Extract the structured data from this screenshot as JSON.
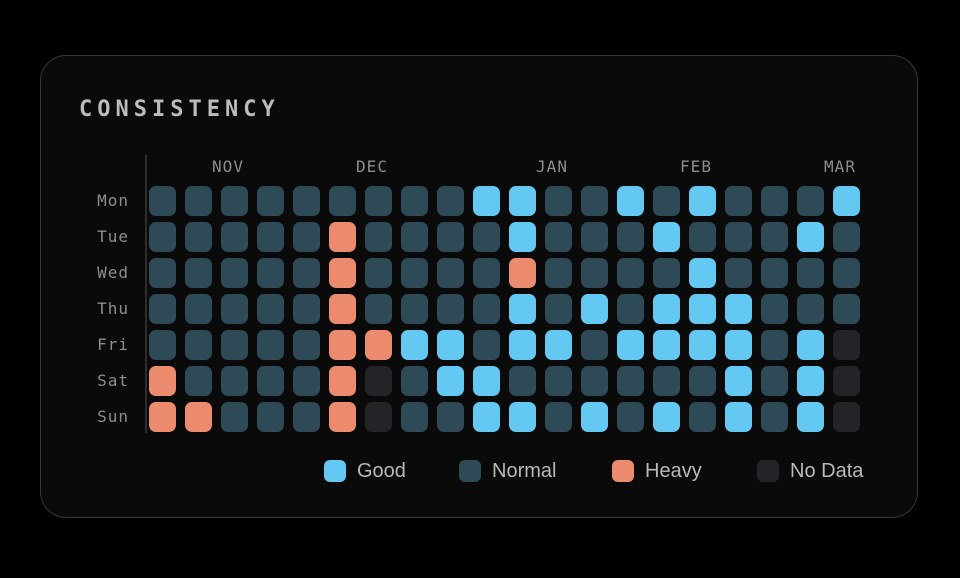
{
  "card": {
    "title": "CONSISTENCY"
  },
  "chart_data": {
    "type": "heatmap",
    "title": "CONSISTENCY",
    "weeks": 20,
    "day_labels": [
      "Mon",
      "Tue",
      "Wed",
      "Thu",
      "Fri",
      "Sat",
      "Sun"
    ],
    "month_labels": [
      {
        "label": "NOV",
        "week_index": 2
      },
      {
        "label": "DEC",
        "week_index": 6
      },
      {
        "label": "JAN",
        "week_index": 11
      },
      {
        "label": "FEB",
        "week_index": 15
      },
      {
        "label": "MAR",
        "week_index": 19
      }
    ],
    "categories": {
      "G": "Good",
      "N": "Normal",
      "H": "Heavy",
      "X": "No Data"
    },
    "colors": {
      "G": "#63c9f2",
      "N": "#2e4a57",
      "H": "#ed8b6e",
      "X": "#232427"
    },
    "rows": [
      {
        "day": "Mon",
        "cells": [
          "N",
          "N",
          "N",
          "N",
          "N",
          "N",
          "N",
          "N",
          "N",
          "G",
          "G",
          "N",
          "N",
          "G",
          "N",
          "G",
          "N",
          "N",
          "N",
          "G"
        ]
      },
      {
        "day": "Tue",
        "cells": [
          "N",
          "N",
          "N",
          "N",
          "N",
          "H",
          "N",
          "N",
          "N",
          "N",
          "G",
          "N",
          "N",
          "N",
          "G",
          "N",
          "N",
          "N",
          "G",
          "N"
        ]
      },
      {
        "day": "Wed",
        "cells": [
          "N",
          "N",
          "N",
          "N",
          "N",
          "H",
          "N",
          "N",
          "N",
          "N",
          "H",
          "N",
          "N",
          "N",
          "N",
          "G",
          "N",
          "N",
          "N",
          "N"
        ]
      },
      {
        "day": "Thu",
        "cells": [
          "N",
          "N",
          "N",
          "N",
          "N",
          "H",
          "N",
          "N",
          "N",
          "N",
          "G",
          "N",
          "G",
          "N",
          "G",
          "G",
          "G",
          "N",
          "N",
          "N"
        ]
      },
      {
        "day": "Fri",
        "cells": [
          "N",
          "N",
          "N",
          "N",
          "N",
          "H",
          "H",
          "G",
          "G",
          "N",
          "G",
          "G",
          "N",
          "G",
          "G",
          "G",
          "G",
          "N",
          "G",
          "X"
        ]
      },
      {
        "day": "Sat",
        "cells": [
          "H",
          "N",
          "N",
          "N",
          "N",
          "H",
          "X",
          "N",
          "G",
          "G",
          "N",
          "N",
          "N",
          "N",
          "N",
          "N",
          "G",
          "N",
          "G",
          "X"
        ]
      },
      {
        "day": "Sun",
        "cells": [
          "H",
          "H",
          "N",
          "N",
          "N",
          "H",
          "X",
          "N",
          "N",
          "G",
          "G",
          "N",
          "G",
          "N",
          "G",
          "N",
          "G",
          "N",
          "G",
          "X"
        ]
      }
    ],
    "legend": [
      {
        "key": "G",
        "label": "Good"
      },
      {
        "key": "N",
        "label": "Normal"
      },
      {
        "key": "H",
        "label": "Heavy"
      },
      {
        "key": "X",
        "label": "No Data"
      }
    ]
  }
}
